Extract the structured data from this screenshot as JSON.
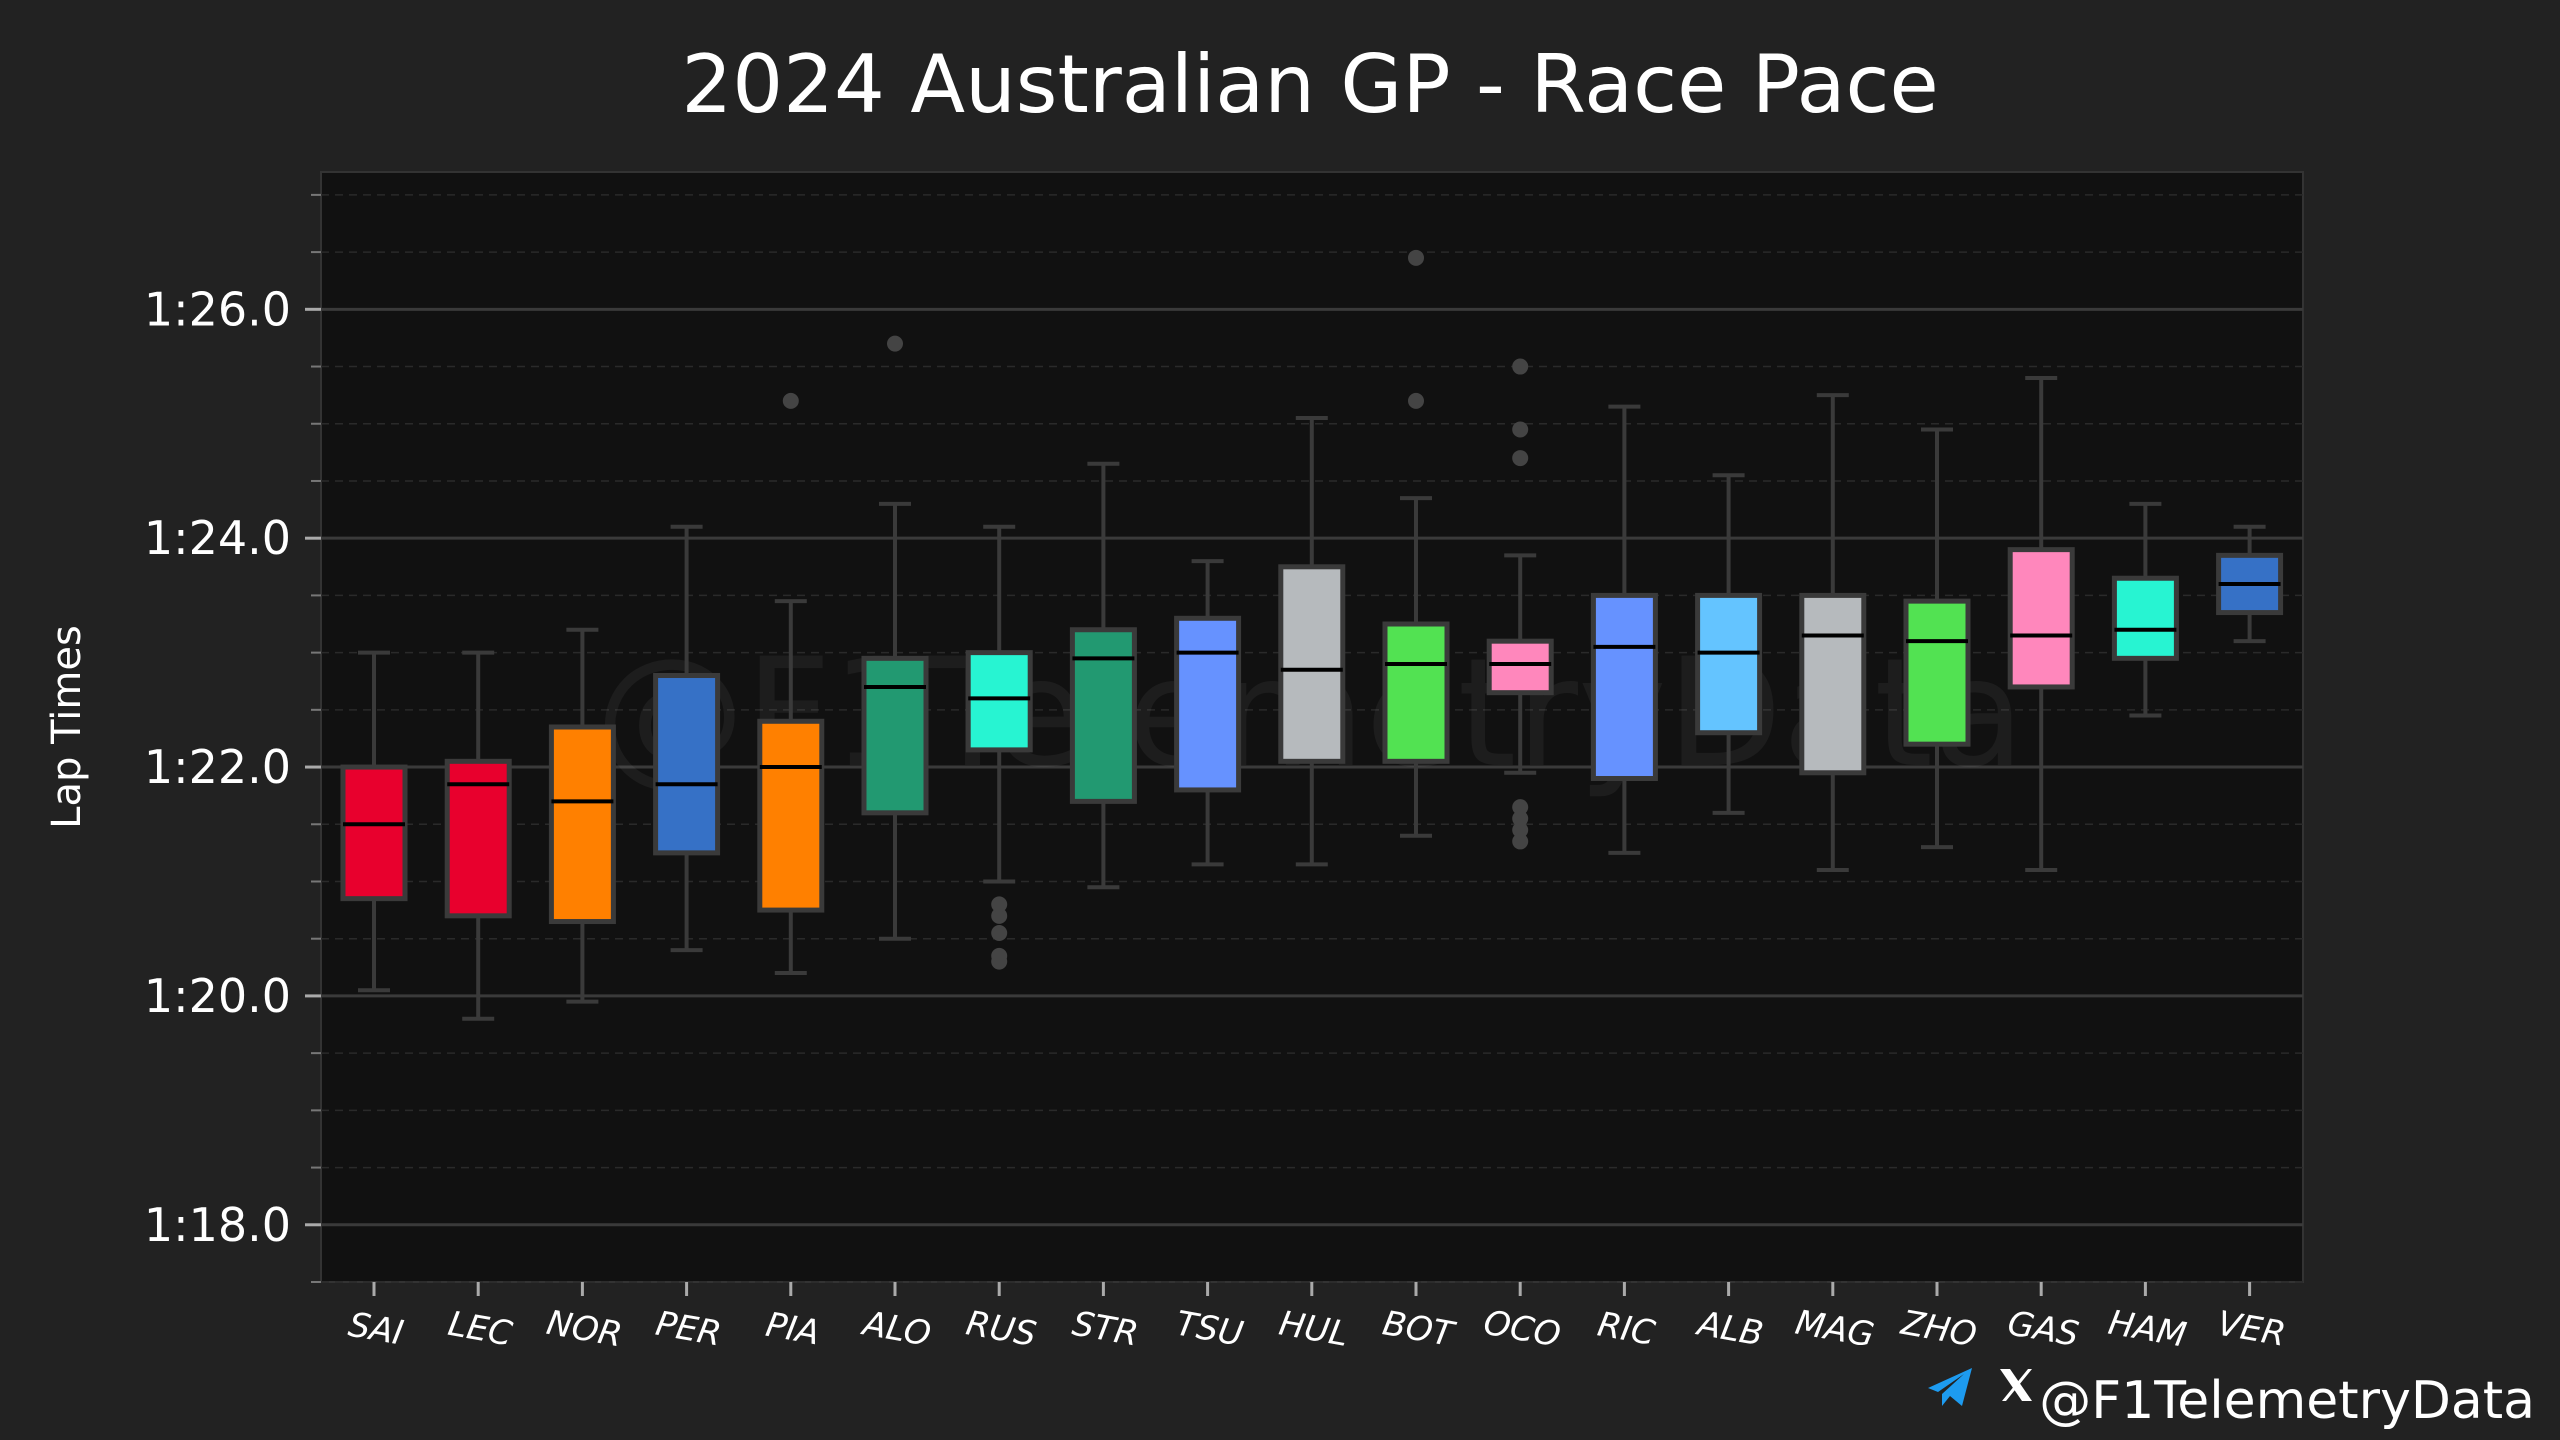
{
  "chart_data": {
    "type": "box",
    "title": "2024 Australian GP - Race Pace",
    "xlabel": "",
    "ylabel": "Lap Times",
    "ylim": [
      77.5,
      87.2
    ],
    "y_ticks": [
      78,
      80,
      82,
      84,
      86
    ],
    "y_tick_labels": [
      "1:18.0",
      "1:20.0",
      "1:22.0",
      "1:24.0",
      "1:26.0"
    ],
    "grid": true,
    "categories": [
      "SAI",
      "LEC",
      "NOR",
      "PER",
      "PIA",
      "ALO",
      "RUS",
      "STR",
      "TSU",
      "HUL",
      "BOT",
      "OCO",
      "RIC",
      "ALB",
      "MAG",
      "ZHO",
      "GAS",
      "HAM",
      "VER"
    ],
    "series": [
      {
        "driver": "SAI",
        "color": "#E8002D",
        "whisker_low": 80.05,
        "q1": 80.85,
        "median": 81.5,
        "q3": 82.0,
        "whisker_high": 83.0,
        "outliers": []
      },
      {
        "driver": "LEC",
        "color": "#E8002D",
        "whisker_low": 79.8,
        "q1": 80.7,
        "median": 81.85,
        "q3": 82.05,
        "whisker_high": 83.0,
        "outliers": []
      },
      {
        "driver": "NOR",
        "color": "#FF8000",
        "whisker_low": 79.95,
        "q1": 80.65,
        "median": 81.7,
        "q3": 82.35,
        "whisker_high": 83.2,
        "outliers": []
      },
      {
        "driver": "PER",
        "color": "#3671C6",
        "whisker_low": 80.4,
        "q1": 81.25,
        "median": 81.85,
        "q3": 82.8,
        "whisker_high": 84.1,
        "outliers": []
      },
      {
        "driver": "PIA",
        "color": "#FF8000",
        "whisker_low": 80.2,
        "q1": 80.75,
        "median": 82.0,
        "q3": 82.4,
        "whisker_high": 83.45,
        "outliers": [
          85.2
        ]
      },
      {
        "driver": "ALO",
        "color": "#229971",
        "whisker_low": 80.5,
        "q1": 81.6,
        "median": 82.7,
        "q3": 82.95,
        "whisker_high": 84.3,
        "outliers": [
          85.7
        ]
      },
      {
        "driver": "RUS",
        "color": "#27F4D2",
        "whisker_low": 81.0,
        "q1": 82.15,
        "median": 82.6,
        "q3": 83.0,
        "whisker_high": 84.1,
        "outliers": [
          80.3,
          80.35,
          80.55,
          80.7,
          80.8
        ]
      },
      {
        "driver": "STR",
        "color": "#229971",
        "whisker_low": 80.95,
        "q1": 81.7,
        "median": 82.95,
        "q3": 83.2,
        "whisker_high": 84.65,
        "outliers": []
      },
      {
        "driver": "TSU",
        "color": "#6692FF",
        "whisker_low": 81.15,
        "q1": 81.8,
        "median": 83.0,
        "q3": 83.3,
        "whisker_high": 83.8,
        "outliers": []
      },
      {
        "driver": "HUL",
        "color": "#B6BABD",
        "whisker_low": 81.15,
        "q1": 82.05,
        "median": 82.85,
        "q3": 83.75,
        "whisker_high": 85.05,
        "outliers": []
      },
      {
        "driver": "BOT",
        "color": "#52E252",
        "whisker_low": 81.4,
        "q1": 82.05,
        "median": 82.9,
        "q3": 83.25,
        "whisker_high": 84.35,
        "outliers": [
          85.2,
          86.45
        ]
      },
      {
        "driver": "OCO",
        "color": "#FF87BC",
        "whisker_low": 81.95,
        "q1": 82.65,
        "median": 82.9,
        "q3": 83.1,
        "whisker_high": 83.85,
        "outliers": [
          81.35,
          81.45,
          81.55,
          81.65,
          84.7,
          84.95,
          85.5
        ]
      },
      {
        "driver": "RIC",
        "color": "#6692FF",
        "whisker_low": 81.25,
        "q1": 81.9,
        "median": 83.05,
        "q3": 83.5,
        "whisker_high": 85.15,
        "outliers": []
      },
      {
        "driver": "ALB",
        "color": "#64C4FF",
        "whisker_low": 81.6,
        "q1": 82.3,
        "median": 83.0,
        "q3": 83.5,
        "whisker_high": 84.55,
        "outliers": []
      },
      {
        "driver": "MAG",
        "color": "#B6BABD",
        "whisker_low": 81.1,
        "q1": 81.95,
        "median": 83.15,
        "q3": 83.5,
        "whisker_high": 85.25,
        "outliers": []
      },
      {
        "driver": "ZHO",
        "color": "#52E252",
        "whisker_low": 81.3,
        "q1": 82.2,
        "median": 83.1,
        "q3": 83.45,
        "whisker_high": 84.95,
        "outliers": []
      },
      {
        "driver": "GAS",
        "color": "#FF87BC",
        "whisker_low": 81.1,
        "q1": 82.7,
        "median": 83.15,
        "q3": 83.9,
        "whisker_high": 85.4,
        "outliers": []
      },
      {
        "driver": "HAM",
        "color": "#27F4D2",
        "whisker_low": 82.45,
        "q1": 82.95,
        "median": 83.2,
        "q3": 83.65,
        "whisker_high": 84.3,
        "outliers": []
      },
      {
        "driver": "VER",
        "color": "#3671C6",
        "whisker_low": 83.1,
        "q1": 83.35,
        "median": 83.6,
        "q3": 83.85,
        "whisker_high": 84.1,
        "outliers": []
      }
    ]
  },
  "watermark": {
    "text": "@F1TelemetryData",
    "icons": [
      "telegram-icon",
      "x-icon"
    ]
  },
  "colors": {
    "background": "#222222",
    "plot_background": "#111111",
    "grid_major": "#3a3a3a",
    "grid_minor": "#2a2a2a",
    "box_edge": "#3a3a3a",
    "telegram": "#1d9bf0"
  }
}
